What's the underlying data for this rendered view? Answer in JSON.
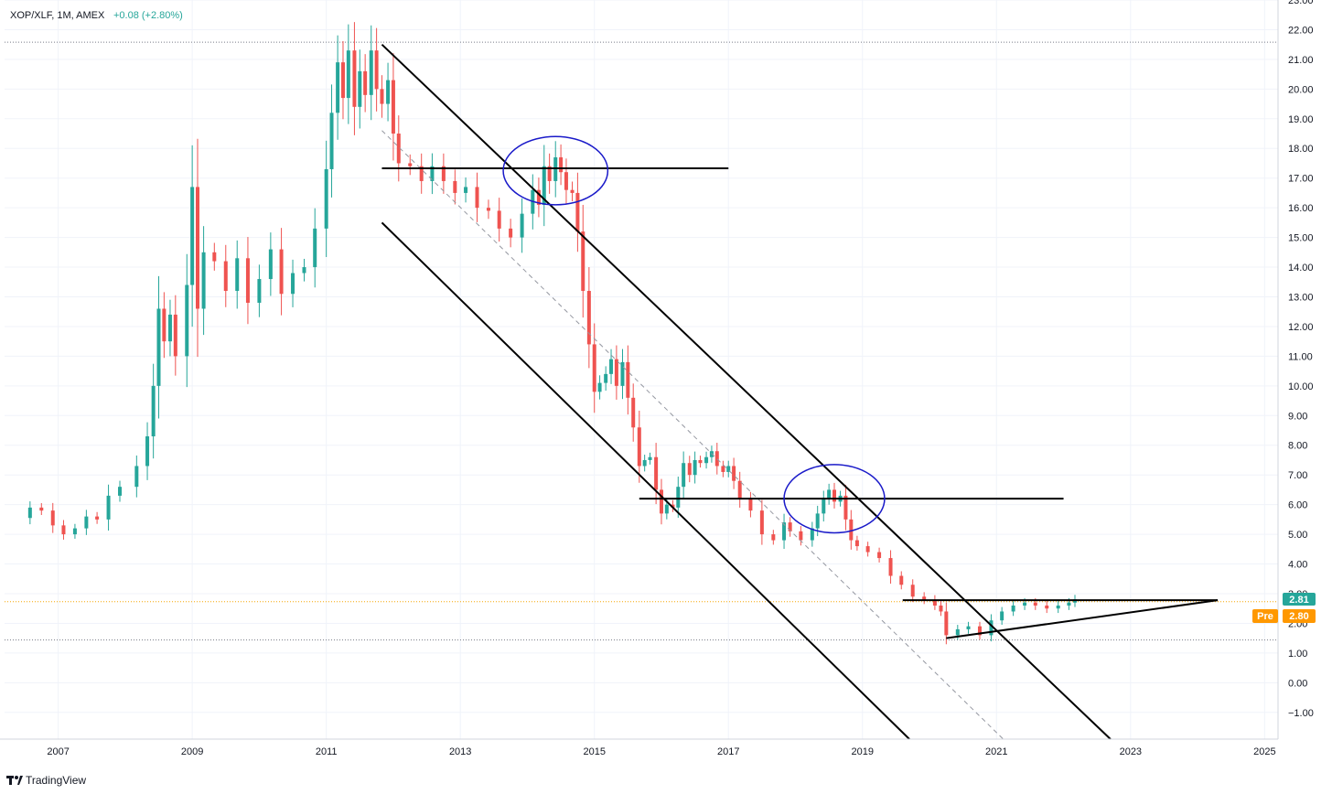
{
  "header": {
    "symbol": "XOP/XLF, 1M, AMEX",
    "change": "+0.08 (+2.80%)"
  },
  "footer": {
    "brand": "TradingView"
  },
  "badges": {
    "last_price": "2.81",
    "pre_label": "Pre",
    "pre_price": "2.80"
  },
  "colors": {
    "up": "#26a69a",
    "down": "#ef5350",
    "price_line": "#f7a600",
    "circle": "#1a1ac9",
    "last_badge": "#26a69a",
    "pre_badge": "#ff9800"
  },
  "chart_data": {
    "type": "candlestick",
    "title": "XOP/XLF, 1M, AMEX",
    "xlabel": "",
    "ylabel": "",
    "xlim": [
      2006.2,
      2025.2
    ],
    "ylim": [
      -1.9,
      23.0
    ],
    "x_ticks": [
      "2007",
      "2009",
      "2011",
      "2013",
      "2015",
      "2017",
      "2019",
      "2021",
      "2023",
      "2025"
    ],
    "y_ticks": [
      "23.00",
      "22.00",
      "21.00",
      "20.00",
      "19.00",
      "18.00",
      "17.00",
      "16.00",
      "15.00",
      "14.00",
      "13.00",
      "12.00",
      "11.00",
      "10.00",
      "9.00",
      "8.00",
      "7.00",
      "6.00",
      "5.00",
      "4.00",
      "3.00",
      "2.00",
      "1.00",
      "0.00",
      "−1.00"
    ],
    "close_series": [
      [
        2006.58,
        5.9
      ],
      [
        2006.75,
        5.8
      ],
      [
        2006.92,
        5.3
      ],
      [
        2007.08,
        5.0
      ],
      [
        2007.25,
        5.2
      ],
      [
        2007.42,
        5.6
      ],
      [
        2007.58,
        5.5
      ],
      [
        2007.75,
        6.3
      ],
      [
        2007.92,
        6.6
      ],
      [
        2008.17,
        7.3
      ],
      [
        2008.33,
        8.3
      ],
      [
        2008.42,
        10.0
      ],
      [
        2008.5,
        12.6
      ],
      [
        2008.58,
        11.5
      ],
      [
        2008.67,
        12.4
      ],
      [
        2008.75,
        11.0
      ],
      [
        2008.92,
        13.4
      ],
      [
        2009.0,
        16.7
      ],
      [
        2009.08,
        12.6
      ],
      [
        2009.17,
        14.5
      ],
      [
        2009.33,
        14.2
      ],
      [
        2009.5,
        13.2
      ],
      [
        2009.67,
        14.3
      ],
      [
        2009.83,
        12.8
      ],
      [
        2010.0,
        13.6
      ],
      [
        2010.17,
        14.6
      ],
      [
        2010.33,
        13.1
      ],
      [
        2010.5,
        13.8
      ],
      [
        2010.67,
        14.0
      ],
      [
        2010.83,
        15.3
      ],
      [
        2011.0,
        17.3
      ],
      [
        2011.08,
        19.2
      ],
      [
        2011.17,
        20.9
      ],
      [
        2011.25,
        19.7
      ],
      [
        2011.33,
        21.3
      ],
      [
        2011.42,
        19.4
      ],
      [
        2011.5,
        20.6
      ],
      [
        2011.58,
        19.8
      ],
      [
        2011.67,
        21.3
      ],
      [
        2011.75,
        20.0
      ],
      [
        2011.83,
        19.5
      ],
      [
        2011.92,
        20.3
      ],
      [
        2012.0,
        18.5
      ],
      [
        2012.08,
        17.5
      ],
      [
        2012.25,
        17.4
      ],
      [
        2012.42,
        16.9
      ],
      [
        2012.58,
        17.4
      ],
      [
        2012.75,
        16.9
      ],
      [
        2012.92,
        16.5
      ],
      [
        2013.08,
        16.7
      ],
      [
        2013.25,
        16.0
      ],
      [
        2013.42,
        15.9
      ],
      [
        2013.58,
        15.3
      ],
      [
        2013.75,
        15.0
      ],
      [
        2013.92,
        15.8
      ],
      [
        2014.08,
        16.6
      ],
      [
        2014.17,
        16.1
      ],
      [
        2014.25,
        17.4
      ],
      [
        2014.33,
        16.9
      ],
      [
        2014.42,
        17.7
      ],
      [
        2014.5,
        17.2
      ],
      [
        2014.58,
        16.6
      ],
      [
        2014.67,
        16.5
      ],
      [
        2014.75,
        15.2
      ],
      [
        2014.83,
        13.2
      ],
      [
        2014.92,
        11.4
      ],
      [
        2015.0,
        9.8
      ],
      [
        2015.08,
        10.1
      ],
      [
        2015.17,
        10.4
      ],
      [
        2015.25,
        10.9
      ],
      [
        2015.33,
        10.0
      ],
      [
        2015.42,
        10.8
      ],
      [
        2015.5,
        9.6
      ],
      [
        2015.58,
        8.6
      ],
      [
        2015.67,
        7.3
      ],
      [
        2015.75,
        7.5
      ],
      [
        2015.83,
        7.6
      ],
      [
        2015.92,
        6.5
      ],
      [
        2016.0,
        5.7
      ],
      [
        2016.08,
        6.0
      ],
      [
        2016.17,
        5.9
      ],
      [
        2016.25,
        6.6
      ],
      [
        2016.33,
        7.4
      ],
      [
        2016.42,
        7.0
      ],
      [
        2016.5,
        7.5
      ],
      [
        2016.58,
        7.4
      ],
      [
        2016.67,
        7.6
      ],
      [
        2016.75,
        7.8
      ],
      [
        2016.83,
        7.3
      ],
      [
        2016.92,
        7.1
      ],
      [
        2017.0,
        7.3
      ],
      [
        2017.08,
        6.8
      ],
      [
        2017.17,
        6.2
      ],
      [
        2017.33,
        5.8
      ],
      [
        2017.5,
        5.0
      ],
      [
        2017.67,
        4.8
      ],
      [
        2017.83,
        5.4
      ],
      [
        2017.92,
        5.1
      ],
      [
        2018.08,
        4.8
      ],
      [
        2018.25,
        5.2
      ],
      [
        2018.33,
        5.7
      ],
      [
        2018.42,
        6.2
      ],
      [
        2018.5,
        6.5
      ],
      [
        2018.58,
        6.1
      ],
      [
        2018.67,
        6.3
      ],
      [
        2018.75,
        5.5
      ],
      [
        2018.83,
        4.8
      ],
      [
        2018.92,
        4.6
      ],
      [
        2019.08,
        4.4
      ],
      [
        2019.25,
        4.2
      ],
      [
        2019.42,
        3.6
      ],
      [
        2019.58,
        3.3
      ],
      [
        2019.75,
        2.9
      ],
      [
        2019.92,
        2.8
      ],
      [
        2020.08,
        2.6
      ],
      [
        2020.17,
        2.4
      ],
      [
        2020.25,
        1.6
      ],
      [
        2020.42,
        1.8
      ],
      [
        2020.58,
        1.9
      ],
      [
        2020.75,
        1.6
      ],
      [
        2020.92,
        2.1
      ],
      [
        2021.08,
        2.4
      ],
      [
        2021.25,
        2.6
      ],
      [
        2021.42,
        2.7
      ],
      [
        2021.58,
        2.6
      ],
      [
        2021.75,
        2.5
      ],
      [
        2021.92,
        2.6
      ],
      [
        2022.08,
        2.7
      ],
      [
        2022.17,
        2.81
      ]
    ],
    "last_value": 2.81,
    "prev_close": 2.73,
    "change_abs": 0.08,
    "change_pct": 2.8,
    "dotted_levels": [
      21.58,
      2.73,
      1.44
    ],
    "price_line_value": 2.73,
    "trendlines": [
      {
        "kind": "channel-upper",
        "from": [
          2011.83,
          21.5
        ],
        "to": [
          2022.7,
          -1.9
        ]
      },
      {
        "kind": "channel-lower",
        "from": [
          2011.83,
          15.5
        ],
        "to": [
          2019.7,
          -1.9
        ]
      },
      {
        "kind": "channel-mid-dashed",
        "from": [
          2011.83,
          18.6
        ],
        "to": [
          2021.1,
          -1.9
        ]
      },
      {
        "kind": "horizontal",
        "from": [
          2011.83,
          17.33
        ],
        "to": [
          2017.0,
          17.33
        ]
      },
      {
        "kind": "horizontal",
        "from": [
          2015.67,
          6.2
        ],
        "to": [
          2022.0,
          6.2
        ]
      },
      {
        "kind": "horizontal",
        "from": [
          2019.6,
          2.78
        ],
        "to": [
          2024.3,
          2.78
        ]
      },
      {
        "kind": "triangle-support",
        "from": [
          2020.25,
          1.5
        ],
        "to": [
          2024.3,
          2.78
        ]
      }
    ],
    "circles": [
      {
        "center": [
          2014.42,
          17.25
        ],
        "rx_years": 0.78,
        "ry": 1.15
      },
      {
        "center": [
          2018.58,
          6.2
        ],
        "rx_years": 0.75,
        "ry": 1.15
      }
    ],
    "grid": true,
    "legend": "top-left"
  }
}
